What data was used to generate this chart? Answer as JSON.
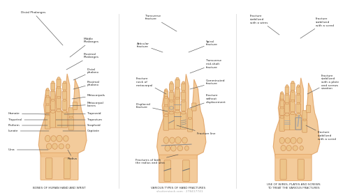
{
  "bg_color": "#ffffff",
  "skin_light": "#f2c28a",
  "skin_mid": "#e0a060",
  "skin_dark": "#c8804a",
  "bone_light": "#edc48a",
  "bone_mid": "#d4955a",
  "line_color": "#555555",
  "text_color": "#2a2a2a",
  "caption_color": "#333333",
  "section_titles": [
    "BONES OF HUMAN HAND AND WRIST",
    "VARIOUS TYPES OF HAND FRACTURES",
    "USE OF WIRES, PLATES AND SCREWS\nTO TREAT THE VARIOUS FRACTURES"
  ],
  "shutterstock_text": "shutterstock.com · 278417741"
}
